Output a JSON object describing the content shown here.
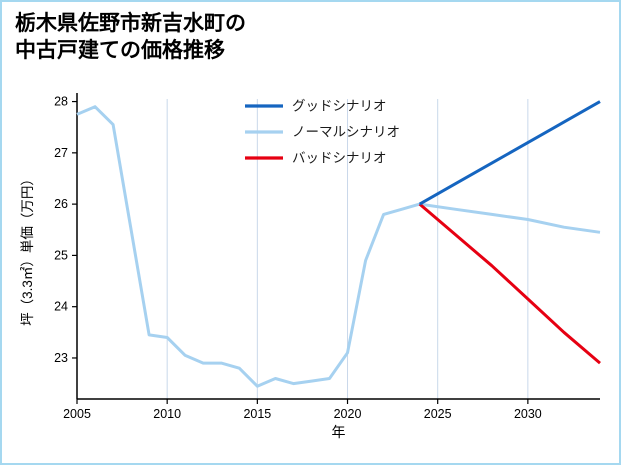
{
  "page": {
    "background": "#ffffff",
    "border_color": "#a5d8f0"
  },
  "title": {
    "line1": "栃木県佐野市新吉水町の",
    "line2": "中古戸建ての価格推移"
  },
  "chart_data": {
    "type": "line",
    "title": "栃木県佐野市新吉水町の中古戸建ての価格推移",
    "xlabel": "年",
    "ylabel": "坪（3.3㎡）単価（万円）",
    "xlim": [
      2005,
      2034
    ],
    "ylim": [
      22.2,
      28.05
    ],
    "xticks": [
      2005,
      2010,
      2015,
      2020,
      2025,
      2030
    ],
    "yticks": [
      23,
      24,
      25,
      26,
      27,
      28
    ],
    "grid": "vertical",
    "grid_color": "#c9d8ea",
    "axis_color": "#000000",
    "legend_position": "upper-center-inside",
    "series": [
      {
        "name": "グッドシナリオ",
        "color": "#1565c0",
        "width": 3,
        "x": [
          2024,
          2026,
          2028,
          2030,
          2032,
          2034
        ],
        "y": [
          26.0,
          26.4,
          26.8,
          27.2,
          27.6,
          28.0
        ]
      },
      {
        "name": "ノーマルシナリオ",
        "color": "#a6d1f0",
        "width": 3,
        "x": [
          2005,
          2006,
          2007,
          2008,
          2009,
          2010,
          2011,
          2012,
          2013,
          2014,
          2015,
          2016,
          2017,
          2018,
          2019,
          2020,
          2021,
          2022,
          2023,
          2024,
          2026,
          2028,
          2030,
          2032,
          2034
        ],
        "y": [
          27.75,
          27.9,
          27.55,
          25.5,
          23.45,
          23.4,
          23.05,
          22.9,
          22.9,
          22.8,
          22.45,
          22.6,
          22.5,
          22.55,
          22.6,
          23.1,
          24.9,
          25.8,
          25.9,
          26.0,
          25.9,
          25.8,
          25.7,
          25.55,
          25.45
        ]
      },
      {
        "name": "バッドシナリオ",
        "color": "#e60012",
        "width": 3,
        "x": [
          2024,
          2026,
          2028,
          2030,
          2032,
          2034
        ],
        "y": [
          26.0,
          25.4,
          24.8,
          24.15,
          23.5,
          22.9
        ]
      }
    ],
    "legend_order": [
      0,
      1,
      2
    ]
  }
}
